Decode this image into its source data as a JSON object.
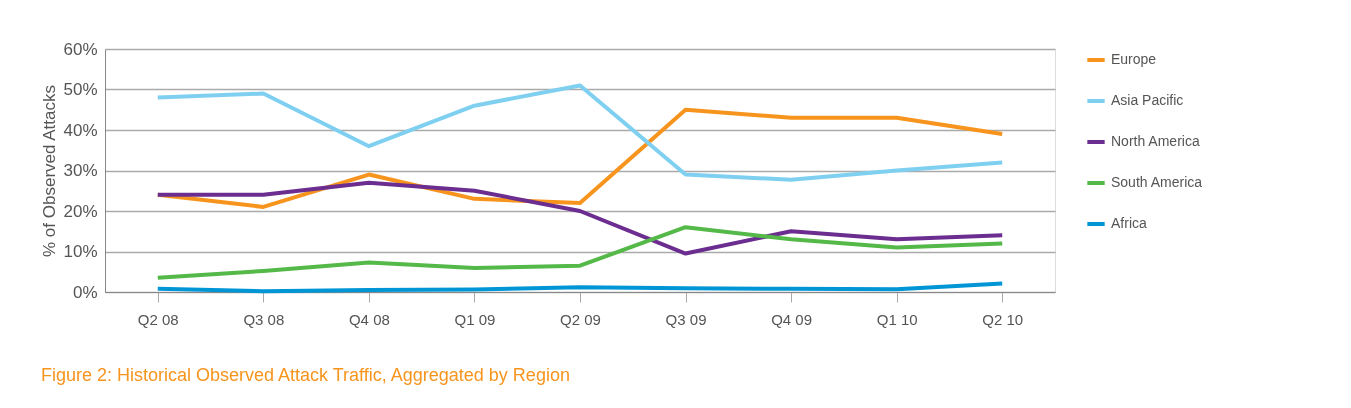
{
  "chart_data": {
    "type": "line",
    "ylabel": "% of Observed Attacks",
    "categories": [
      "Q2 08",
      "Q3 08",
      "Q4 08",
      "Q1 09",
      "Q2 09",
      "Q3 09",
      "Q4 09",
      "Q1 10",
      "Q2 10"
    ],
    "series": [
      {
        "name": "Europe",
        "color": "#f7941d",
        "values": [
          24,
          21,
          29,
          23,
          22,
          45,
          43,
          43,
          39
        ]
      },
      {
        "name": "Asia Pacific",
        "color": "#7fd0f0",
        "values": [
          48,
          49,
          36,
          46,
          51,
          29,
          27.7,
          30,
          32
        ]
      },
      {
        "name": "North America",
        "color": "#6b2d8f",
        "values": [
          24,
          24,
          27,
          25,
          20,
          9.5,
          15,
          13,
          14
        ]
      },
      {
        "name": "South America",
        "color": "#54b948",
        "values": [
          3.5,
          5.2,
          7.3,
          5.9,
          6.5,
          16,
          13,
          11,
          12
        ]
      },
      {
        "name": "Africa",
        "color": "#0096d6",
        "values": [
          0.8,
          0.2,
          0.5,
          0.6,
          1.2,
          0.9,
          0.8,
          0.7,
          2.1
        ]
      }
    ],
    "ylim": [
      0,
      60
    ],
    "yticks": [
      {
        "value": 0,
        "label": "0%"
      },
      {
        "value": 10,
        "label": "10%"
      },
      {
        "value": 20,
        "label": "20%"
      },
      {
        "value": 30,
        "label": "30%"
      },
      {
        "value": 40,
        "label": "40%"
      },
      {
        "value": 50,
        "label": "50%"
      },
      {
        "value": 60,
        "label": "60%"
      }
    ],
    "grid": "y",
    "legend": "right",
    "marker": "none",
    "line_style": "solid",
    "annotations": [
      "Figure 2: Historical Observed Attack Traffic, Aggregated by Region"
    ]
  }
}
